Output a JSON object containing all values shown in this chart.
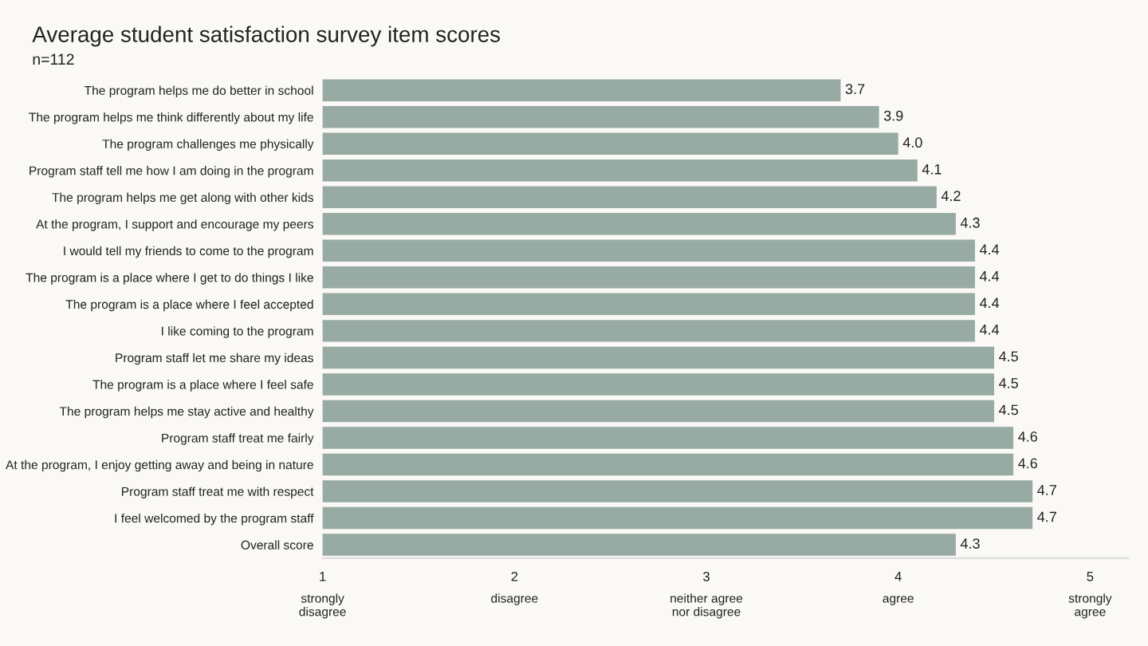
{
  "chart_data": {
    "type": "bar",
    "orientation": "horizontal",
    "title": "Average student satisfaction survey item scores",
    "subtitle": "n=112",
    "categories": [
      "The program helps me do better in school",
      "The program helps me think differently about my life",
      "The program challenges me physically",
      "Program staff tell me how I am doing in the program",
      "The program helps me get along with other kids",
      "At the program, I support and encourage my peers",
      "I would tell my friends to come to the program",
      "The program is a place where I get to do things I like",
      "The program is a place where I feel accepted",
      "I like coming to the program",
      "Program staff let me share my ideas",
      "The program is a place where I feel safe",
      "The program helps me stay active and healthy",
      "Program staff treat me fairly",
      "At the program, I enjoy getting away and being in nature",
      "Program staff treat me with respect",
      "I feel welcomed by the program staff",
      "Overall score"
    ],
    "values": [
      3.7,
      3.9,
      4.0,
      4.1,
      4.2,
      4.3,
      4.4,
      4.4,
      4.4,
      4.4,
      4.5,
      4.5,
      4.5,
      4.6,
      4.6,
      4.7,
      4.7,
      4.3
    ],
    "value_labels": [
      "3.7",
      "3.9",
      "4.0",
      "4.1",
      "4.2",
      "4.3",
      "4.4",
      "4.4",
      "4.4",
      "4.4",
      "4.5",
      "4.5",
      "4.5",
      "4.6",
      "4.6",
      "4.7",
      "4.7",
      "4.3"
    ],
    "color": "#97aaa4",
    "xlim": [
      1,
      5.2
    ],
    "xticks": [
      1,
      2,
      3,
      4,
      5
    ],
    "annotations": [
      "strongly\ndisagree",
      "disagree",
      "neither agree\nnor disagree",
      "agree",
      "strongly\nagree"
    ],
    "grid": false
  }
}
